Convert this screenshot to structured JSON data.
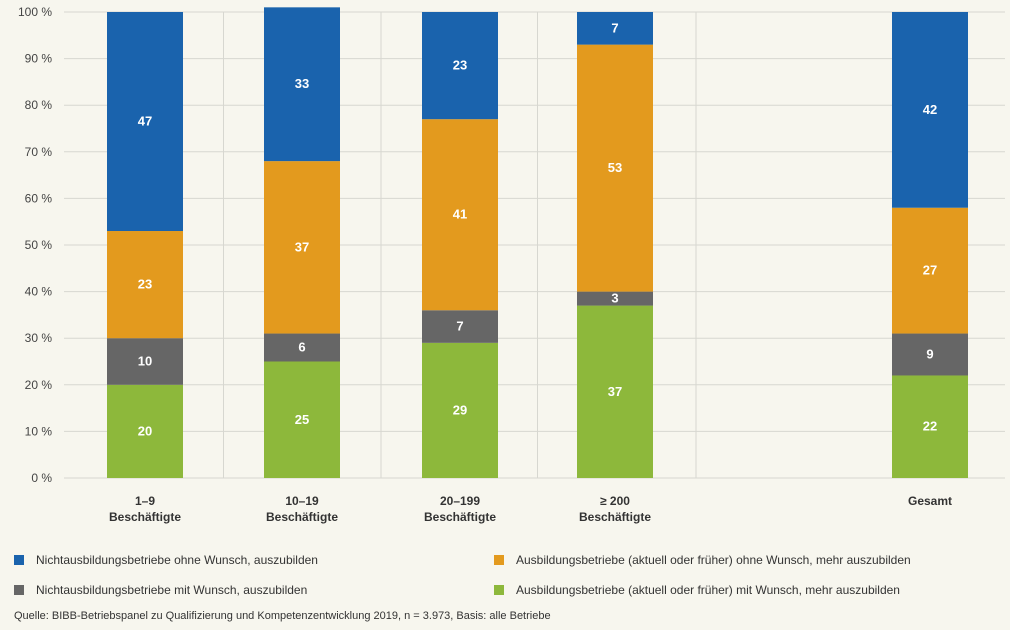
{
  "colors": {
    "blue": "#1a63ad",
    "orange": "#e39a1e",
    "gray": "#666666",
    "green": "#8db83b",
    "grid": "#d7d7d0",
    "background": "#f7f6ee"
  },
  "chart_data": {
    "type": "bar",
    "stacked": true,
    "categories": [
      [
        "1–9",
        "Beschäftigte"
      ],
      [
        "10–19",
        "Beschäftigte"
      ],
      [
        "20–199",
        "Beschäftigte"
      ],
      [
        "≥ 200",
        "Beschäftigte"
      ],
      [
        "Gesamt"
      ]
    ],
    "series": [
      {
        "name": "Ausbildungsbetriebe (aktuell oder früher) mit Wunsch, mehr auszubilden",
        "color": "#8db83b",
        "values": [
          20,
          25,
          29,
          37,
          22
        ]
      },
      {
        "name": "Nichtausbildungsbetriebe mit Wunsch, auszubilden",
        "color": "#666666",
        "values": [
          10,
          6,
          7,
          3,
          9
        ]
      },
      {
        "name": "Ausbildungsbetriebe (aktuell oder früher) ohne Wunsch, mehr auszubilden",
        "color": "#e39a1e",
        "values": [
          23,
          37,
          41,
          53,
          27
        ]
      },
      {
        "name": "Nichtausbildungsbetriebe ohne Wunsch, auszubilden",
        "color": "#1a63ad",
        "values": [
          47,
          33,
          23,
          7,
          42
        ]
      }
    ],
    "ylim": [
      0,
      100
    ],
    "yticks": [
      "0 %",
      "10 %",
      "20 %",
      "30 %",
      "40 %",
      "50 %",
      "60 %",
      "70 %",
      "80 %",
      "90 %",
      "100 %"
    ],
    "grid": true,
    "legend_position": "bottom"
  },
  "legend": [
    {
      "label": "Nichtausbildungsbetriebe ohne Wunsch, auszubilden",
      "color": "#1a63ad"
    },
    {
      "label": "Ausbildungsbetriebe (aktuell oder früher) ohne Wunsch, mehr auszubilden",
      "color": "#e39a1e"
    },
    {
      "label": "Nichtausbildungsbetriebe mit Wunsch, auszubilden",
      "color": "#666666"
    },
    {
      "label": "Ausbildungsbetriebe (aktuell oder früher) mit Wunsch, mehr auszubilden",
      "color": "#8db83b"
    }
  ],
  "source": "Quelle: BIBB-Betriebspanel zu Qualifizierung und Kompetenzentwicklung 2019, n = 3.973, Basis: alle Betriebe"
}
